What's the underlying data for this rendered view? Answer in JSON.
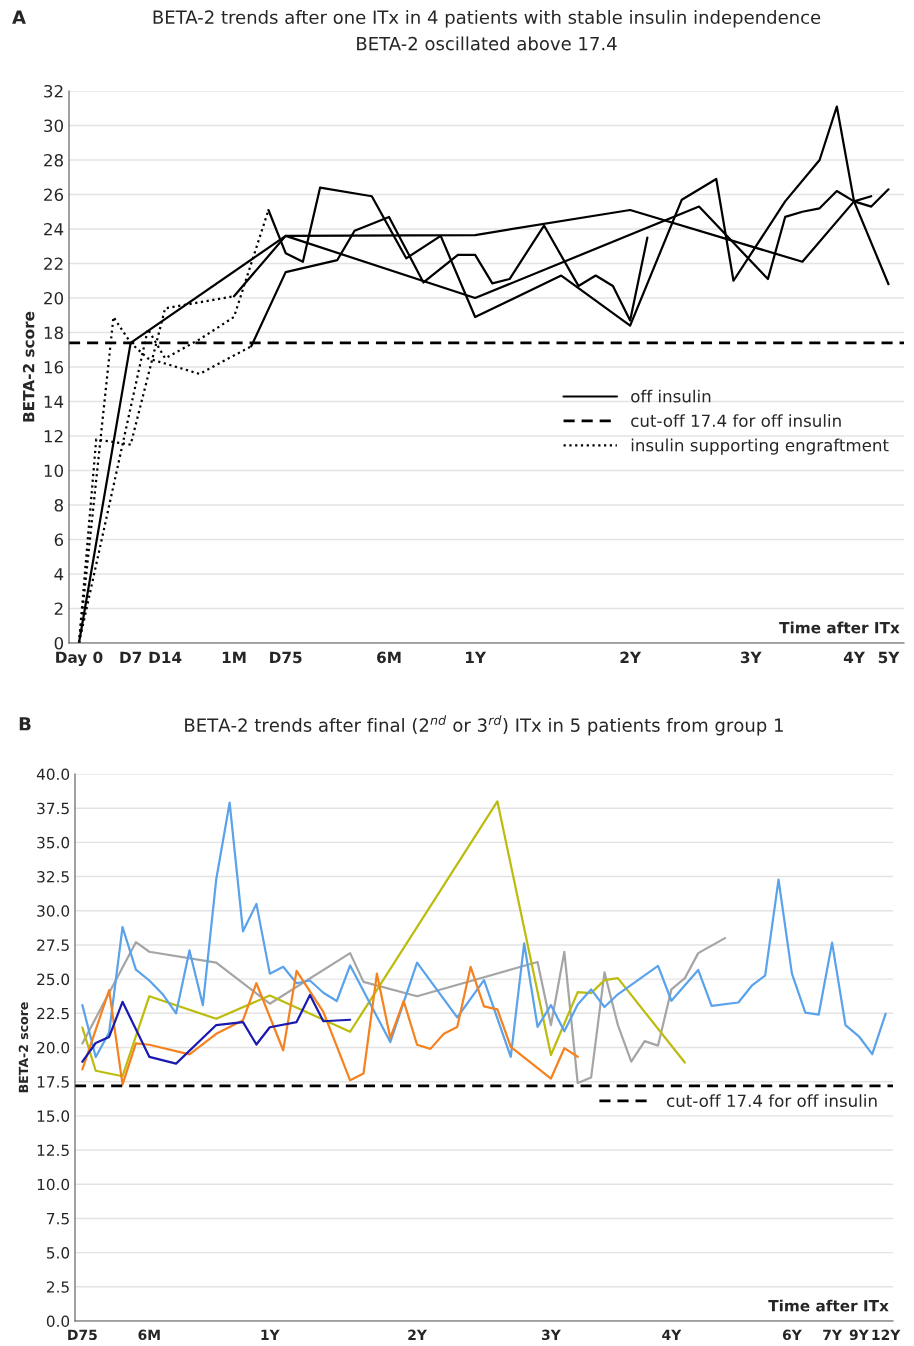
{
  "chart_data": [
    {
      "type": "line",
      "title": "BETA-2 trends after one ITx in 4 patients with stable insulin independence",
      "subtitle": "BETA-2 oscillated above 17.4",
      "annotations": [
        "A"
      ],
      "xlabel": "Time after ITx",
      "ylabel": "BETA-2 score",
      "categories": [
        "Day 0",
        null,
        null,
        "D7",
        null,
        "D14",
        null,
        null,
        null,
        "1M",
        null,
        null,
        "D75",
        null,
        null,
        null,
        null,
        null,
        "6M",
        null,
        null,
        null,
        null,
        "1Y",
        null,
        null,
        null,
        null,
        null,
        null,
        null,
        null,
        "2Y",
        null,
        null,
        null,
        null,
        null,
        null,
        "3Y",
        null,
        null,
        null,
        null,
        null,
        "4Y",
        null,
        "5Y"
      ],
      "ylim": [
        0,
        32
      ],
      "yticks": [
        0,
        2,
        4,
        6,
        8,
        10,
        12,
        14,
        16,
        18,
        20,
        22,
        24,
        26,
        28,
        30,
        32
      ],
      "grid": "y",
      "legend": "right",
      "ref_lines": [
        {
          "axis": "y",
          "value": 17.4,
          "label": "cut-off 17.4 for off insulin",
          "color": "#000000",
          "line_style": "dashed"
        }
      ],
      "series": [
        {
          "name": "off insulin",
          "color": "#000000",
          "line_style": "solid",
          "values": [
            0,
            null,
            null,
            17.4,
            null,
            null,
            null,
            null,
            null,
            null,
            null,
            null,
            23.6,
            null,
            null,
            null,
            null,
            null,
            null,
            null,
            null,
            null,
            null,
            23.65,
            null,
            null,
            null,
            null,
            null,
            null,
            null,
            null,
            25.1,
            null,
            null,
            null,
            null,
            null,
            null,
            null,
            null,
            null,
            22.1,
            null,
            null,
            25.6,
            25.9,
            null
          ]
        },
        {
          "color": "#000000",
          "line_style": "solid",
          "values": [
            null,
            null,
            null,
            null,
            null,
            null,
            null,
            null,
            null,
            20.1,
            null,
            null,
            23.6,
            null,
            null,
            null,
            null,
            null,
            null,
            null,
            null,
            null,
            null,
            20.0,
            null,
            null,
            null,
            null,
            null,
            null,
            null,
            null,
            null,
            null,
            null,
            null,
            25.3,
            null,
            null,
            null,
            21.1,
            24.7,
            25.0,
            25.2,
            26.2,
            25.6,
            25.3,
            26.3
          ]
        },
        {
          "color": "#000000",
          "line_style": "solid",
          "values": [
            null,
            null,
            null,
            null,
            null,
            null,
            null,
            null,
            null,
            null,
            null,
            25.1,
            22.6,
            22.1,
            26.4,
            null,
            null,
            25.9,
            null,
            22.3,
            null,
            23.6,
            null,
            18.9,
            null,
            null,
            null,
            null,
            21.3,
            null,
            null,
            null,
            18.4,
            null,
            null,
            25.7,
            null,
            26.9,
            21.0,
            null,
            null,
            25.6,
            null,
            28.0,
            31.1,
            25.6,
            null,
            20.8
          ]
        },
        {
          "color": "#000000",
          "line_style": "solid",
          "values": [
            null,
            null,
            null,
            null,
            null,
            null,
            null,
            null,
            null,
            null,
            17.2,
            null,
            21.5,
            null,
            null,
            22.2,
            23.9,
            null,
            24.7,
            null,
            20.9,
            null,
            22.5,
            22.5,
            20.85,
            21.1,
            null,
            24.2,
            null,
            20.7,
            21.3,
            20.7,
            18.7,
            23.5,
            null,
            null,
            null,
            null,
            null,
            null,
            null,
            null,
            null,
            null,
            null,
            null,
            null,
            null
          ]
        },
        {
          "name": "insulin supporting engraftment",
          "color": "#000000",
          "line_style": "dotted",
          "values": [
            0,
            null,
            18.9,
            17.4,
            16.5,
            null,
            null,
            15.6,
            null,
            null,
            17.2,
            null,
            null,
            null,
            null,
            null,
            null,
            null,
            null,
            null,
            null,
            null,
            null,
            null,
            null,
            null,
            null,
            null,
            null,
            null,
            null,
            null,
            null,
            null,
            null,
            null,
            null,
            null,
            null,
            null,
            null,
            null,
            null,
            null,
            null,
            null,
            null,
            null
          ]
        },
        {
          "color": "#000000",
          "line_style": "dotted",
          "values": [
            0,
            11.8,
            null,
            11.5,
            null,
            19.4,
            null,
            null,
            null,
            20.1,
            null,
            null,
            null,
            null,
            null,
            null,
            null,
            null,
            null,
            null,
            null,
            null,
            null,
            null,
            null,
            null,
            null,
            null,
            null,
            null,
            null,
            null,
            null,
            null,
            null,
            null,
            null,
            null,
            null,
            null,
            null,
            null,
            null,
            null,
            null,
            null,
            null,
            null
          ]
        },
        {
          "color": "#000000",
          "line_style": "dotted",
          "values": [
            0,
            null,
            null,
            null,
            18.2,
            16.5,
            null,
            17.6,
            null,
            18.9,
            null,
            25.1,
            null,
            null,
            null,
            null,
            null,
            null,
            null,
            null,
            null,
            null,
            null,
            null,
            null,
            null,
            null,
            null,
            null,
            null,
            null,
            null,
            null,
            null,
            null,
            null,
            null,
            null,
            null,
            null,
            null,
            null,
            null,
            null,
            null,
            null,
            null,
            null
          ]
        }
      ]
    },
    {
      "type": "line",
      "title": "BETA-2 trends after final (2$^{nd}$ or 3$^{rd}$) ITx in 5 patients from group 1",
      "annotations": [
        "B"
      ],
      "xlabel": "Time after ITx",
      "ylabel": "BETA-2 score",
      "categories": [
        "D75",
        null,
        null,
        null,
        null,
        "6M",
        null,
        null,
        null,
        null,
        null,
        null,
        null,
        null,
        "1Y",
        null,
        null,
        null,
        null,
        null,
        null,
        null,
        null,
        null,
        null,
        "2Y",
        null,
        null,
        null,
        null,
        null,
        null,
        null,
        null,
        null,
        "3Y",
        null,
        null,
        null,
        null,
        null,
        null,
        null,
        null,
        "4Y",
        null,
        null,
        null,
        null,
        null,
        null,
        null,
        null,
        "6Y",
        null,
        null,
        "7Y",
        null,
        "9Y",
        null,
        "12Y"
      ],
      "ylim": [
        0,
        40
      ],
      "yticks": [
        {
          "value": 0,
          "label": "0.0"
        },
        {
          "value": 2.5,
          "label": "2.5"
        },
        {
          "value": 5,
          "label": "5.0"
        },
        {
          "value": 7.5,
          "label": "7.5"
        },
        {
          "value": 10,
          "label": "10.0"
        },
        {
          "value": 12.5,
          "label": "12.5"
        },
        {
          "value": 15,
          "label": "15.0"
        },
        {
          "value": 17.5,
          "label": "17.5"
        },
        {
          "value": 20,
          "label": "20.0"
        },
        {
          "value": 22.5,
          "label": "22.5"
        },
        {
          "value": 25,
          "label": "25.0"
        },
        {
          "value": 27.5,
          "label": "27.5"
        },
        {
          "value": 30,
          "label": "30.0"
        },
        {
          "value": 32.5,
          "label": "32.5"
        },
        {
          "value": 35,
          "label": "35.0"
        },
        {
          "value": 37.5,
          "label": "37.5"
        },
        {
          "value": 40,
          "label": "40.0"
        }
      ],
      "grid": "y",
      "legend": "right",
      "ref_lines": [
        {
          "axis": "y",
          "value": 17.2,
          "label": "cut-off 17.4 for off insulin",
          "color": "#000000",
          "line_style": "dashed"
        }
      ],
      "series": [
        {
          "color": "#a5a5a5",
          "line_style": "solid",
          "values": [
            20.3,
            null,
            null,
            null,
            27.7,
            27.0,
            null,
            null,
            null,
            null,
            26.2,
            null,
            null,
            null,
            23.2,
            null,
            null,
            null,
            null,
            null,
            26.9,
            24.8,
            null,
            null,
            null,
            23.75,
            null,
            null,
            null,
            null,
            null,
            null,
            null,
            null,
            26.25,
            21.64,
            26.99,
            17.4,
            17.8,
            25.5,
            21.64,
            18.96,
            20.47,
            20.14,
            24.25,
            25.07,
            26.9,
            null,
            28.0,
            null,
            null,
            null,
            null,
            null,
            null,
            null,
            null,
            null,
            null,
            null,
            null
          ]
        },
        {
          "color": "#bcbc0e",
          "line_style": "solid",
          "values": [
            21.45,
            18.3,
            null,
            17.9,
            null,
            23.75,
            null,
            null,
            null,
            null,
            22.1,
            null,
            null,
            null,
            23.8,
            null,
            null,
            null,
            null,
            null,
            21.15,
            null,
            null,
            null,
            null,
            null,
            null,
            null,
            null,
            null,
            null,
            38.0,
            null,
            null,
            null,
            19.45,
            null,
            24.05,
            23.97,
            24.93,
            25.07,
            null,
            null,
            null,
            null,
            18.9,
            null,
            null,
            null,
            null,
            null,
            null,
            null,
            null,
            null,
            null,
            null,
            null,
            null,
            null,
            null
          ]
        },
        {
          "color": "#5aa3eb",
          "line_style": "solid",
          "values": [
            23.1,
            19.3,
            21.1,
            28.8,
            25.7,
            24.9,
            23.9,
            22.5,
            27.1,
            23.1,
            32.3,
            37.9,
            28.5,
            30.5,
            25.4,
            25.9,
            24.7,
            24.9,
            24.0,
            23.4,
            26.0,
            null,
            null,
            20.4,
            null,
            26.2,
            null,
            null,
            22.2,
            null,
            24.93,
            null,
            19.32,
            27.62,
            21.51,
            23.1,
            21.18,
            23.15,
            24.25,
            22.96,
            23.89,
            null,
            null,
            25.97,
            23.42,
            null,
            25.67,
            23.04,
            null,
            23.29,
            24.52,
            25.26,
            32.27,
            25.4,
            22.55,
            22.41,
            27.67,
            21.64,
            20.82,
            19.51,
            22.47
          ]
        },
        {
          "color": "#f5821f",
          "line_style": "solid",
          "values": [
            18.4,
            null,
            24.2,
            17.3,
            20.3,
            20.2,
            null,
            null,
            19.5,
            null,
            21.0,
            null,
            22.0,
            24.7,
            null,
            19.8,
            25.6,
            null,
            22.6,
            null,
            17.6,
            18.1,
            25.4,
            20.7,
            23.4,
            20.2,
            19.9,
            21.0,
            21.5,
            25.89,
            23.01,
            22.79,
            20.05,
            null,
            null,
            17.73,
            19.95,
            19.32,
            null,
            null,
            null,
            null,
            null,
            null,
            null,
            null,
            null,
            null,
            null,
            null,
            null,
            null,
            null,
            null,
            null,
            null,
            null,
            null,
            null,
            null,
            null
          ]
        },
        {
          "color": "#1a1ab0",
          "line_style": "solid",
          "values": [
            18.96,
            20.33,
            20.77,
            23.34,
            null,
            19.32,
            null,
            18.82,
            null,
            null,
            21.64,
            null,
            21.86,
            20.22,
            21.48,
            null,
            21.86,
            23.84,
            21.92,
            null,
            22.03,
            null,
            null,
            null,
            null,
            null,
            null,
            null,
            null,
            null,
            null,
            null,
            null,
            null,
            null,
            null,
            null,
            null,
            null,
            null,
            null,
            null,
            null,
            null,
            null,
            null,
            null,
            null,
            null,
            null,
            null,
            null,
            null,
            null,
            null,
            null,
            null,
            null,
            null,
            null,
            null
          ]
        }
      ]
    }
  ]
}
